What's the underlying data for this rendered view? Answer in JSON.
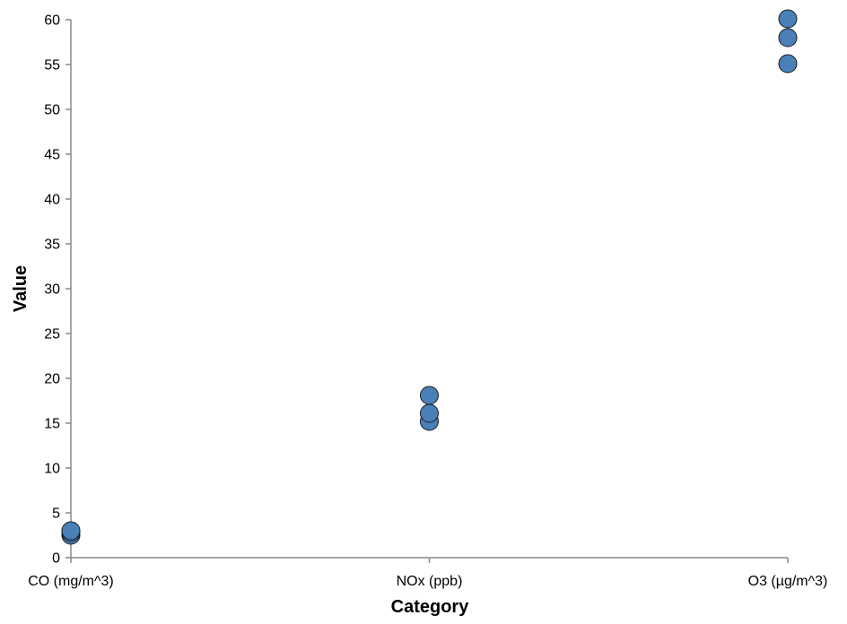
{
  "chart_data": {
    "type": "scatter",
    "xlabel": "Category",
    "ylabel": "Value",
    "categories": [
      "CO (mg/m^3)",
      "NOx (ppb)",
      "O3 (µg/m^3)"
    ],
    "ylim": [
      0,
      60
    ],
    "yticks": [
      0,
      5,
      10,
      15,
      20,
      25,
      30,
      35,
      40,
      45,
      50,
      55,
      60
    ],
    "grid": false,
    "points": [
      {
        "category": "CO (mg/m^3)",
        "value": 2.5
      },
      {
        "category": "CO (mg/m^3)",
        "value": 2.8
      },
      {
        "category": "CO (mg/m^3)",
        "value": 3.0
      },
      {
        "category": "NOx (ppb)",
        "value": 15.2
      },
      {
        "category": "NOx (ppb)",
        "value": 16.1
      },
      {
        "category": "NOx (ppb)",
        "value": 18.1
      },
      {
        "category": "O3 (µg/m^3)",
        "value": 55.1
      },
      {
        "category": "O3 (µg/m^3)",
        "value": 58.0
      },
      {
        "category": "O3 (µg/m^3)",
        "value": 60.1
      }
    ],
    "colors": {
      "point_fill": "#4a80b8",
      "point_stroke": "#1a1a1a",
      "axis": "#888888"
    }
  }
}
